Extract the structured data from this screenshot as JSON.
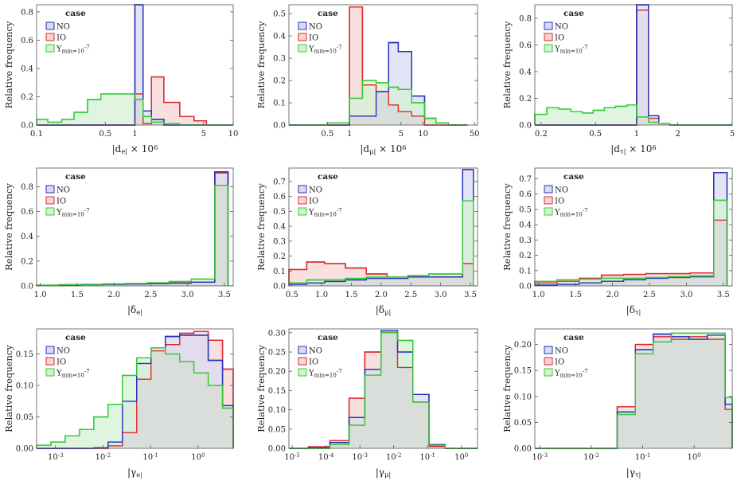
{
  "colors": {
    "NO": "#2233bb",
    "IO": "#dd2a2a",
    "Y": "#33cc33"
  },
  "legend": {
    "title": "case",
    "entries": [
      "NO",
      "IO",
      "Y_min=10^-7"
    ]
  },
  "chart_data": [
    {
      "type": "histogram",
      "ylabel": "Relative frequency",
      "xlabel": "|d_e| × 10^6",
      "xscale": "log",
      "xlim": [
        0.1,
        10
      ],
      "ylim": [
        0,
        0.85
      ],
      "xticks": [
        {
          "v": 0.1,
          "label": "0.1"
        },
        {
          "v": 0.5,
          "label": "0.5"
        },
        {
          "v": 1,
          "label": "1"
        },
        {
          "v": 5,
          "label": "5"
        },
        {
          "v": 10,
          "label": "10"
        }
      ],
      "yticks": [
        0,
        0.2,
        0.4,
        0.6,
        0.8
      ],
      "yfmt": 1,
      "bins": [
        0.1,
        0.13,
        0.18,
        0.24,
        0.33,
        0.45,
        0.6,
        0.82,
        1.0,
        1.21,
        1.47,
        1.97,
        2.86,
        4.0,
        5.34,
        7.0,
        10.0
      ],
      "series": [
        {
          "name": "NO",
          "values": [
            0,
            0,
            0,
            0,
            0,
            0,
            0,
            0,
            0.86,
            0.1,
            0.04,
            0,
            0,
            0,
            0,
            0
          ]
        },
        {
          "name": "IO",
          "values": [
            0,
            0,
            0,
            0,
            0,
            0,
            0,
            0,
            0.22,
            0.01,
            0.34,
            0.16,
            0.06,
            0.03,
            0,
            0
          ]
        },
        {
          "name": "Y",
          "values": [
            0.04,
            0.02,
            0.04,
            0.09,
            0.18,
            0.22,
            0.22,
            0.22,
            0.18,
            0.06,
            0.02,
            0.01,
            0,
            0,
            0,
            0
          ]
        }
      ]
    },
    {
      "type": "histogram",
      "ylabel": "Relative frequency",
      "xlabel": "|d_μ| × 10^6",
      "xscale": "log",
      "xlim": [
        0.15,
        55
      ],
      "ylim": [
        0,
        0.54
      ],
      "xticks": [
        {
          "v": 0.5,
          "label": "0.5"
        },
        {
          "v": 1,
          "label": "1"
        },
        {
          "v": 5,
          "label": "5"
        },
        {
          "v": 10,
          "label": "10"
        },
        {
          "v": 50,
          "label": "50"
        }
      ],
      "yticks": [
        0,
        0.1,
        0.2,
        0.3,
        0.4,
        0.5
      ],
      "yfmt": 1,
      "bins": [
        0.15,
        0.5,
        1.0,
        1.5,
        2.3,
        3.4,
        4.6,
        7.0,
        10.5,
        15.0,
        22.0,
        40.0
      ],
      "series": [
        {
          "name": "NO",
          "values": [
            0,
            0,
            0.04,
            0.04,
            0.15,
            0.37,
            0.33,
            0.13,
            0.03,
            0.01,
            0
          ]
        },
        {
          "name": "IO",
          "values": [
            0,
            0,
            0.53,
            0.18,
            0.15,
            0.09,
            0.06,
            0.04,
            0,
            0,
            0
          ]
        },
        {
          "name": "Y",
          "values": [
            0,
            0.01,
            0.12,
            0.2,
            0.19,
            0.17,
            0.16,
            0.1,
            0.03,
            0.01,
            0
          ]
        }
      ]
    },
    {
      "type": "histogram",
      "ylabel": "Relative frequency",
      "xlabel": "|d_τ| × 10^6",
      "xscale": "log",
      "xlim": [
        0.18,
        5
      ],
      "ylim": [
        0,
        0.9
      ],
      "xticks": [
        {
          "v": 0.2,
          "label": "0.2"
        },
        {
          "v": 0.5,
          "label": "0.5"
        },
        {
          "v": 1,
          "label": "1"
        },
        {
          "v": 2,
          "label": "2"
        },
        {
          "v": 5,
          "label": "5"
        }
      ],
      "yticks": [
        0,
        0.2,
        0.4,
        0.6,
        0.8
      ],
      "yfmt": 1,
      "bins": [
        0.18,
        0.22,
        0.27,
        0.33,
        0.4,
        0.48,
        0.58,
        0.7,
        0.85,
        1.0,
        1.22,
        1.45,
        1.75,
        2.1,
        2.6,
        3.2,
        4.0,
        5.0
      ],
      "series": [
        {
          "name": "NO",
          "values": [
            0,
            0,
            0,
            0,
            0,
            0,
            0,
            0,
            0,
            0.93,
            0.07,
            0.01,
            0,
            0,
            0,
            0,
            0
          ]
        },
        {
          "name": "IO",
          "values": [
            0,
            0,
            0,
            0,
            0,
            0,
            0,
            0,
            0,
            0.86,
            0.05,
            0.01,
            0,
            0,
            0,
            0,
            0
          ]
        },
        {
          "name": "Y",
          "values": [
            0.08,
            0.13,
            0.12,
            0.1,
            0.09,
            0.11,
            0.13,
            0.14,
            0.15,
            0.06,
            0.02,
            0.01,
            0,
            0,
            0,
            0,
            0
          ]
        }
      ]
    },
    {
      "type": "histogram",
      "ylabel": "Relative frequency",
      "xlabel": "|δ_e|",
      "xscale": "linear",
      "xlim": [
        0.95,
        3.62
      ],
      "ylim": [
        0,
        0.95
      ],
      "xticks": [
        {
          "v": 1,
          "label": "1.0"
        },
        {
          "v": 1.5,
          "label": "1.5"
        },
        {
          "v": 2,
          "label": "2.0"
        },
        {
          "v": 2.5,
          "label": "2.5"
        },
        {
          "v": 3,
          "label": "3.0"
        },
        {
          "v": 3.5,
          "label": "3.5"
        }
      ],
      "yticks": [
        0,
        0.2,
        0.4,
        0.6,
        0.8
      ],
      "yfmt": 1,
      "bins": [
        0.95,
        1.25,
        1.55,
        1.85,
        2.15,
        2.45,
        2.75,
        3.05,
        3.37,
        3.55
      ],
      "series": [
        {
          "name": "NO",
          "values": [
            0.005,
            0.007,
            0.01,
            0.012,
            0.015,
            0.018,
            0.022,
            0.03,
            0.92
          ]
        },
        {
          "name": "IO",
          "values": [
            0.005,
            0.008,
            0.01,
            0.013,
            0.016,
            0.02,
            0.024,
            0.03,
            0.91
          ]
        },
        {
          "name": "Y",
          "values": [
            0.006,
            0.01,
            0.012,
            0.016,
            0.02,
            0.025,
            0.035,
            0.055,
            0.81
          ]
        }
      ]
    },
    {
      "type": "histogram",
      "ylabel": "Relative frequency",
      "xlabel": "|δ_μ|",
      "xscale": "linear",
      "xlim": [
        0.45,
        3.62
      ],
      "ylim": [
        0,
        0.79
      ],
      "xticks": [
        {
          "v": 0.5,
          "label": "0.5"
        },
        {
          "v": 1,
          "label": "1.0"
        },
        {
          "v": 1.5,
          "label": "1.5"
        },
        {
          "v": 2,
          "label": "2.0"
        },
        {
          "v": 2.5,
          "label": "2.5"
        },
        {
          "v": 3,
          "label": "3.0"
        },
        {
          "v": 3.5,
          "label": "3.5"
        }
      ],
      "yticks": [
        0,
        0.1,
        0.2,
        0.3,
        0.4,
        0.5,
        0.6,
        0.7
      ],
      "yfmt": 1,
      "bins": [
        0.45,
        0.75,
        1.05,
        1.4,
        1.75,
        2.1,
        2.45,
        2.8,
        3.37,
        3.55
      ],
      "series": [
        {
          "name": "NO",
          "values": [
            0.01,
            0.02,
            0.03,
            0.04,
            0.05,
            0.05,
            0.06,
            0.06,
            0.78
          ]
        },
        {
          "name": "IO",
          "values": [
            0.11,
            0.16,
            0.15,
            0.12,
            0.08,
            0.06,
            0.06,
            0.06,
            0.15
          ]
        },
        {
          "name": "Y",
          "values": [
            0.02,
            0.04,
            0.04,
            0.05,
            0.06,
            0.06,
            0.07,
            0.08,
            0.57
          ]
        }
      ]
    },
    {
      "type": "histogram",
      "ylabel": "Relative frequency",
      "xlabel": "|δ_τ|",
      "xscale": "linear",
      "xlim": [
        0.95,
        3.62
      ],
      "ylim": [
        0,
        0.77
      ],
      "xticks": [
        {
          "v": 1,
          "label": "1.0"
        },
        {
          "v": 1.5,
          "label": "1.5"
        },
        {
          "v": 2,
          "label": "2.0"
        },
        {
          "v": 2.5,
          "label": "2.5"
        },
        {
          "v": 3,
          "label": "3.0"
        },
        {
          "v": 3.5,
          "label": "3.5"
        }
      ],
      "yticks": [
        0,
        0.1,
        0.2,
        0.3,
        0.4,
        0.5,
        0.6,
        0.7
      ],
      "yfmt": 1,
      "bins": [
        0.95,
        1.25,
        1.55,
        1.85,
        2.15,
        2.45,
        2.75,
        3.05,
        3.37,
        3.55
      ],
      "series": [
        {
          "name": "NO",
          "values": [
            0.005,
            0.01,
            0.02,
            0.03,
            0.04,
            0.05,
            0.055,
            0.06,
            0.74
          ]
        },
        {
          "name": "IO",
          "values": [
            0.02,
            0.03,
            0.05,
            0.07,
            0.075,
            0.08,
            0.08,
            0.085,
            0.43
          ]
        },
        {
          "name": "Y",
          "values": [
            0.03,
            0.04,
            0.045,
            0.05,
            0.05,
            0.055,
            0.06,
            0.065,
            0.56
          ]
        }
      ]
    },
    {
      "type": "histogram",
      "ylabel": "Relative frequency",
      "xlabel": "|γ_e|",
      "xscale": "log",
      "xlim": [
        0.0004,
        5.5
      ],
      "ylim": [
        0,
        0.19
      ],
      "xticks": [
        {
          "v": 0.001,
          "label": "10^-3"
        },
        {
          "v": 0.01,
          "label": "10^-2"
        },
        {
          "v": 0.1,
          "label": "10^-1"
        },
        {
          "v": 1,
          "label": "10^0"
        }
      ],
      "yticks": [
        0,
        0.05,
        0.1,
        0.15
      ],
      "yfmt": 2,
      "bins": [
        0.0004,
        0.0008,
        0.0016,
        0.0032,
        0.0064,
        0.0128,
        0.0256,
        0.0512,
        0.1024,
        0.2048,
        0.4096,
        0.8192,
        1.6384,
        3.2768,
        5.5
      ],
      "series": [
        {
          "name": "NO",
          "values": [
            0,
            0,
            0,
            0,
            0.001,
            0.01,
            0.075,
            0.135,
            0.16,
            0.178,
            0.18,
            0.18,
            0.14,
            0.068
          ]
        },
        {
          "name": "IO",
          "values": [
            0,
            0,
            0,
            0,
            0,
            0.004,
            0.025,
            0.11,
            0.155,
            0.165,
            0.183,
            0.186,
            0.172,
            0.126
          ]
        },
        {
          "name": "Y",
          "values": [
            0.005,
            0.01,
            0.02,
            0.03,
            0.05,
            0.07,
            0.116,
            0.144,
            0.16,
            0.15,
            0.138,
            0.12,
            0.1,
            0.064
          ]
        }
      ]
    },
    {
      "type": "histogram",
      "ylabel": "Relative frequency",
      "xlabel": "|γ_μ|",
      "xscale": "log",
      "xlim": [
        8e-06,
        3
      ],
      "ylim": [
        0,
        0.31
      ],
      "xticks": [
        {
          "v": 1e-05,
          "label": "10^-5"
        },
        {
          "v": 0.0001,
          "label": "10^-4"
        },
        {
          "v": 0.001,
          "label": "10^-3"
        },
        {
          "v": 0.01,
          "label": "10^-2"
        },
        {
          "v": 0.1,
          "label": "10^-1"
        },
        {
          "v": 1,
          "label": "10^0"
        }
      ],
      "yticks": [
        0,
        0.05,
        0.1,
        0.15,
        0.2,
        0.25,
        0.3
      ],
      "yfmt": 2,
      "bins": [
        8e-06,
        3e-05,
        0.00013,
        0.00048,
        0.0014,
        0.0042,
        0.013,
        0.037,
        0.11,
        0.33,
        1.0,
        3.0
      ],
      "series": [
        {
          "name": "NO",
          "values": [
            0,
            0.002,
            0.015,
            0.08,
            0.205,
            0.305,
            0.25,
            0.14,
            0.01,
            0,
            0
          ]
        },
        {
          "name": "IO",
          "values": [
            0,
            0.004,
            0.02,
            0.13,
            0.25,
            0.3,
            0.21,
            0.12,
            0.005,
            0,
            0
          ]
        },
        {
          "name": "Y",
          "values": [
            0,
            0,
            0.01,
            0.06,
            0.19,
            0.3,
            0.28,
            0.12,
            0.008,
            0,
            0
          ]
        }
      ]
    },
    {
      "type": "histogram",
      "ylabel": "Relative frequency",
      "xlabel": "|γ_τ|",
      "xscale": "log",
      "xlim": [
        0.0008,
        5.5
      ],
      "ylim": [
        0,
        0.23
      ],
      "xticks": [
        {
          "v": 0.001,
          "label": "10^-3"
        },
        {
          "v": 0.01,
          "label": "10^-2"
        },
        {
          "v": 0.1,
          "label": "10^-1"
        },
        {
          "v": 1,
          "label": "10^0"
        }
      ],
      "yticks": [
        0,
        0.05,
        0.1,
        0.15,
        0.2
      ],
      "yfmt": 2,
      "bins": [
        0.0008,
        0.032,
        0.072,
        0.16,
        0.36,
        0.8,
        1.8,
        4.0,
        5.5
      ],
      "series": [
        {
          "name": "NO",
          "values": [
            0,
            0.07,
            0.19,
            0.22,
            0.215,
            0.21,
            0.218,
            0.085
          ]
        },
        {
          "name": "IO",
          "values": [
            0,
            0.08,
            0.2,
            0.215,
            0.21,
            0.215,
            0.21,
            0.075
          ]
        },
        {
          "name": "Y",
          "values": [
            0,
            0.065,
            0.182,
            0.205,
            0.222,
            0.222,
            0.222,
            0.098
          ]
        }
      ]
    }
  ]
}
